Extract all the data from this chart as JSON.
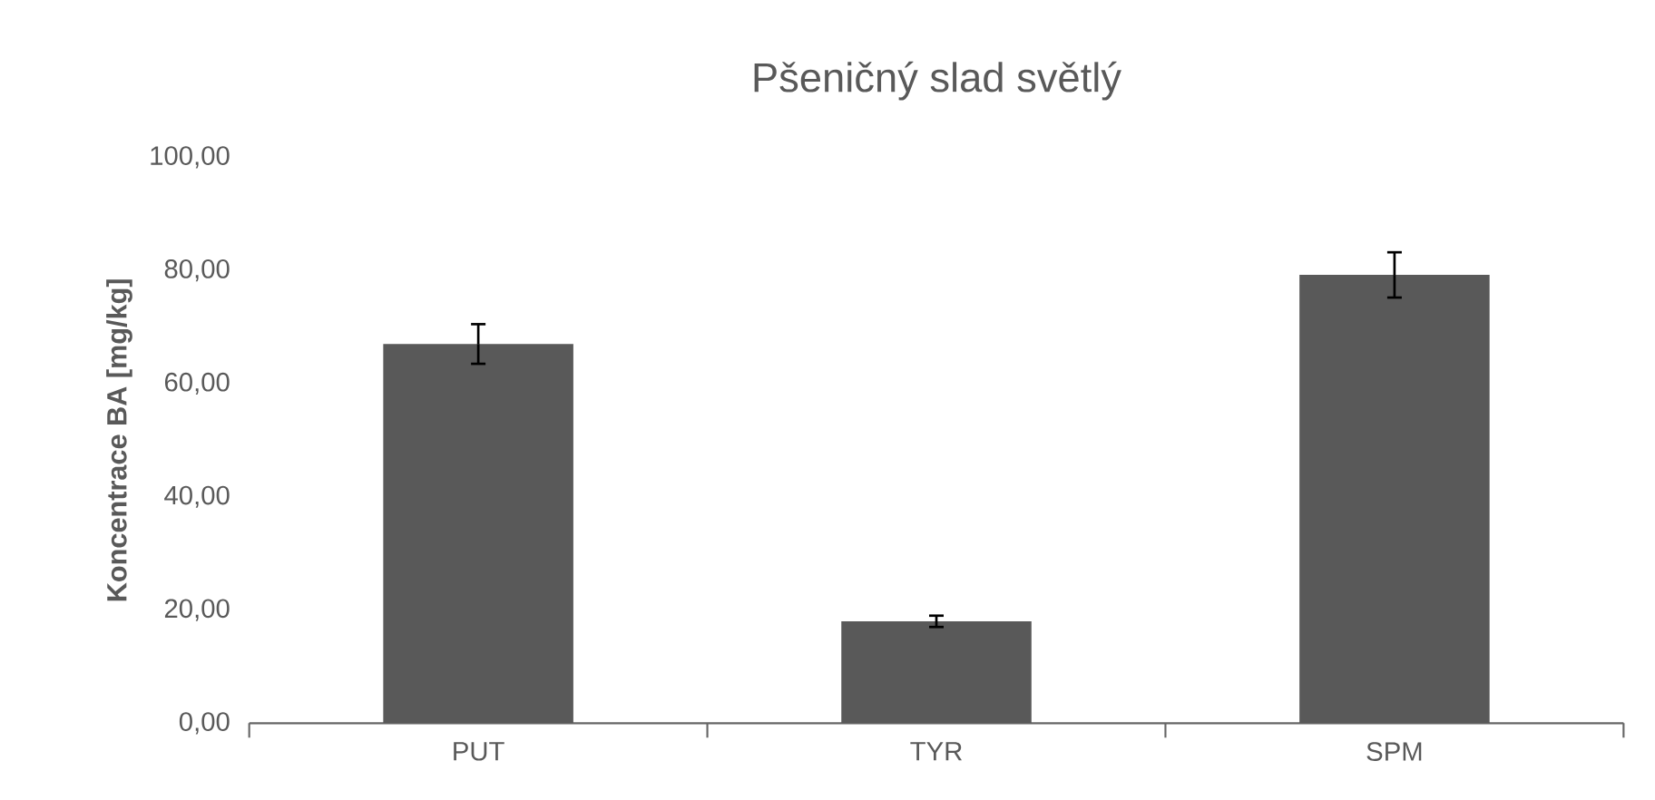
{
  "chart_data": {
    "type": "bar",
    "title": "Pšeničný slad světlý",
    "ylabel": "Koncentrace BA [mg/kg]",
    "categories": [
      "PUT",
      "TYR",
      "SPM"
    ],
    "values": [
      67.0,
      18.0,
      79.2
    ],
    "errors": [
      3.5,
      1.0,
      4.0
    ],
    "color": "#595959",
    "ylim": [
      0,
      100
    ],
    "yticks": [
      {
        "value": 0,
        "label": "0,00"
      },
      {
        "value": 20,
        "label": "20,00"
      },
      {
        "value": 40,
        "label": "40,00"
      },
      {
        "value": 60,
        "label": "60,00"
      },
      {
        "value": 80,
        "label": "80,00"
      },
      {
        "value": 100,
        "label": "100,00"
      }
    ],
    "grid": false
  }
}
